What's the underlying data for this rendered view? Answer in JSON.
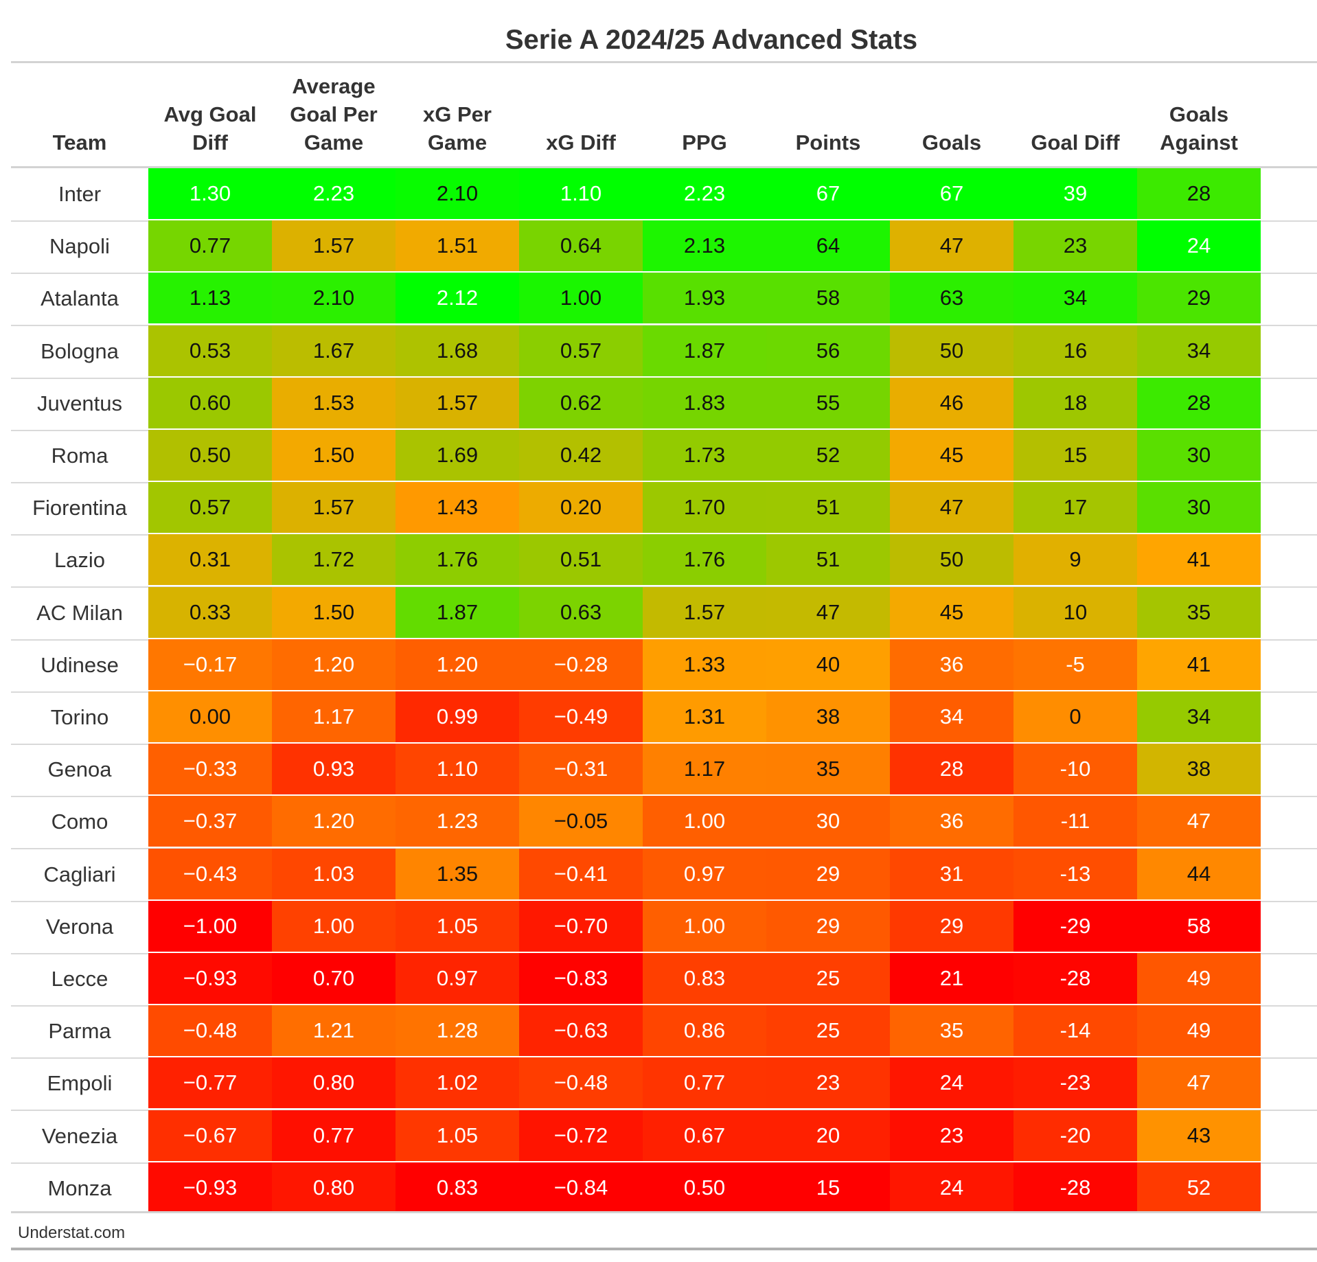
{
  "chart_data": {
    "type": "table",
    "title": "Serie A 2024/25 Advanced Stats",
    "columns": [
      {
        "key": "team",
        "label": "Team"
      },
      {
        "key": "avg_goal_diff",
        "label": "Avg Goal Diff"
      },
      {
        "key": "avg_goal_per_game",
        "label": "Average Goal Per Game"
      },
      {
        "key": "xg_per_game",
        "label": "xG Per Game"
      },
      {
        "key": "xg_diff",
        "label": "xG Diff"
      },
      {
        "key": "ppg",
        "label": "PPG"
      },
      {
        "key": "points",
        "label": "Points"
      },
      {
        "key": "goals",
        "label": "Goals"
      },
      {
        "key": "goal_diff",
        "label": "Goal Diff"
      },
      {
        "key": "goals_against",
        "label": "Goals Against"
      }
    ],
    "rows": [
      {
        "team": "Inter",
        "values": [
          "1.30",
          "2.23",
          "2.10",
          "1.10",
          "2.23",
          "67",
          "67",
          "39",
          "28"
        ]
      },
      {
        "team": "Napoli",
        "values": [
          "0.77",
          "1.57",
          "1.51",
          "0.64",
          "2.13",
          "64",
          "47",
          "23",
          "24"
        ]
      },
      {
        "team": "Atalanta",
        "values": [
          "1.13",
          "2.10",
          "2.12",
          "1.00",
          "1.93",
          "58",
          "63",
          "34",
          "29"
        ]
      },
      {
        "team": "Bologna",
        "values": [
          "0.53",
          "1.67",
          "1.68",
          "0.57",
          "1.87",
          "56",
          "50",
          "16",
          "34"
        ]
      },
      {
        "team": "Juventus",
        "values": [
          "0.60",
          "1.53",
          "1.57",
          "0.62",
          "1.83",
          "55",
          "46",
          "18",
          "28"
        ]
      },
      {
        "team": "Roma",
        "values": [
          "0.50",
          "1.50",
          "1.69",
          "0.42",
          "1.73",
          "52",
          "45",
          "15",
          "30"
        ]
      },
      {
        "team": "Fiorentina",
        "values": [
          "0.57",
          "1.57",
          "1.43",
          "0.20",
          "1.70",
          "51",
          "47",
          "17",
          "30"
        ]
      },
      {
        "team": "Lazio",
        "values": [
          "0.31",
          "1.72",
          "1.76",
          "0.51",
          "1.76",
          "51",
          "50",
          "9",
          "41"
        ]
      },
      {
        "team": "AC Milan",
        "values": [
          "0.33",
          "1.50",
          "1.87",
          "0.63",
          "1.57",
          "47",
          "45",
          "10",
          "35"
        ]
      },
      {
        "team": "Udinese",
        "values": [
          "−0.17",
          "1.20",
          "1.20",
          "−0.28",
          "1.33",
          "40",
          "36",
          "-5",
          "41"
        ]
      },
      {
        "team": "Torino",
        "values": [
          "0.00",
          "1.17",
          "0.99",
          "−0.49",
          "1.31",
          "38",
          "34",
          "0",
          "34"
        ]
      },
      {
        "team": "Genoa",
        "values": [
          "−0.33",
          "0.93",
          "1.10",
          "−0.31",
          "1.17",
          "35",
          "28",
          "-10",
          "38"
        ]
      },
      {
        "team": "Como",
        "values": [
          "−0.37",
          "1.20",
          "1.23",
          "−0.05",
          "1.00",
          "30",
          "36",
          "-11",
          "47"
        ]
      },
      {
        "team": "Cagliari",
        "values": [
          "−0.43",
          "1.03",
          "1.35",
          "−0.41",
          "0.97",
          "29",
          "31",
          "-13",
          "44"
        ]
      },
      {
        "team": "Verona",
        "values": [
          "−1.00",
          "1.00",
          "1.05",
          "−0.70",
          "1.00",
          "29",
          "29",
          "-29",
          "58"
        ]
      },
      {
        "team": "Lecce",
        "values": [
          "−0.93",
          "0.70",
          "0.97",
          "−0.83",
          "0.83",
          "25",
          "21",
          "-28",
          "49"
        ]
      },
      {
        "team": "Parma",
        "values": [
          "−0.48",
          "1.21",
          "1.28",
          "−0.63",
          "0.86",
          "25",
          "35",
          "-14",
          "49"
        ]
      },
      {
        "team": "Empoli",
        "values": [
          "−0.77",
          "0.80",
          "1.02",
          "−0.48",
          "0.77",
          "23",
          "24",
          "-23",
          "47"
        ]
      },
      {
        "team": "Venezia",
        "values": [
          "−0.67",
          "0.77",
          "1.05",
          "−0.72",
          "0.67",
          "20",
          "23",
          "-20",
          "43"
        ]
      },
      {
        "team": "Monza",
        "values": [
          "−0.93",
          "0.80",
          "0.83",
          "−0.84",
          "0.50",
          "15",
          "24",
          "-28",
          "52"
        ]
      }
    ],
    "color_scale": {
      "description": "per-column heatmap; best value green, worst value red",
      "good_color": "#00ff00",
      "mid_color": "#ffa500",
      "bad_color": "#ff0000",
      "lower_is_better_columns": [
        "goals_against"
      ]
    },
    "source": "Understat.com"
  }
}
